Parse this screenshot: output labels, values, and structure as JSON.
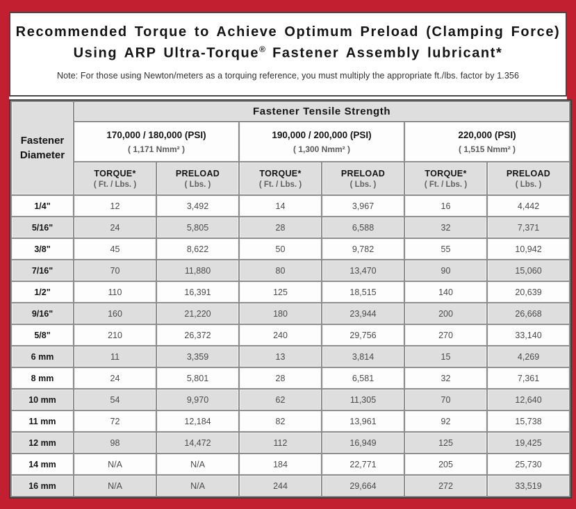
{
  "frame": {
    "border_color": "#c22030",
    "grid_color": "#8c8c8c",
    "row_alt_color": "#dedede"
  },
  "title": {
    "line1": "Recommended Torque to Achieve Optimum Preload (Clamping Force)",
    "line2_pre": "Using ARP Ultra-Torque",
    "line2_reg": "®",
    "line2_post": " Fastener Assembly lubricant*",
    "note": "Note: For those using Newton/meters as a torquing reference, you must multiply the appropriate ft./lbs. factor by 1.356"
  },
  "table": {
    "corner_line1": "Fastener",
    "corner_line2": "Diameter",
    "tensile_header": "Fastener Tensile Strength",
    "strength_groups": [
      {
        "psi": "170,000 / 180,000 (PSI)",
        "nmm": "( 1,171 Nmm² )"
      },
      {
        "psi": "190,000 / 200,000 (PSI)",
        "nmm": "( 1,300 Nmm² )"
      },
      {
        "psi": "220,000 (PSI)",
        "nmm": "( 1,515 Nmm² )"
      }
    ],
    "sub_headers": {
      "torque_label": "TORQUE*",
      "torque_unit": "( Ft. / Lbs. )",
      "preload_label": "PRELOAD",
      "preload_unit": "( Lbs. )"
    },
    "rows": [
      {
        "diameter": "1/4\"",
        "values": [
          "12",
          "3,492",
          "14",
          "3,967",
          "16",
          "4,442"
        ]
      },
      {
        "diameter": "5/16\"",
        "values": [
          "24",
          "5,805",
          "28",
          "6,588",
          "32",
          "7,371"
        ]
      },
      {
        "diameter": "3/8\"",
        "values": [
          "45",
          "8,622",
          "50",
          "9,782",
          "55",
          "10,942"
        ]
      },
      {
        "diameter": "7/16\"",
        "values": [
          "70",
          "11,880",
          "80",
          "13,470",
          "90",
          "15,060"
        ]
      },
      {
        "diameter": "1/2\"",
        "values": [
          "110",
          "16,391",
          "125",
          "18,515",
          "140",
          "20,639"
        ]
      },
      {
        "diameter": "9/16\"",
        "values": [
          "160",
          "21,220",
          "180",
          "23,944",
          "200",
          "26,668"
        ]
      },
      {
        "diameter": "5/8\"",
        "values": [
          "210",
          "26,372",
          "240",
          "29,756",
          "270",
          "33,140"
        ]
      },
      {
        "diameter": "6 mm",
        "values": [
          "11",
          "3,359",
          "13",
          "3,814",
          "15",
          "4,269"
        ]
      },
      {
        "diameter": "8 mm",
        "values": [
          "24",
          "5,801",
          "28",
          "6,581",
          "32",
          "7,361"
        ]
      },
      {
        "diameter": "10 mm",
        "values": [
          "54",
          "9,970",
          "62",
          "11,305",
          "70",
          "12,640"
        ]
      },
      {
        "diameter": "11 mm",
        "values": [
          "72",
          "12,184",
          "82",
          "13,961",
          "92",
          "15,738"
        ]
      },
      {
        "diameter": "12 mm",
        "values": [
          "98",
          "14,472",
          "112",
          "16,949",
          "125",
          "19,425"
        ]
      },
      {
        "diameter": "14 mm",
        "values": [
          "N/A",
          "N/A",
          "184",
          "22,771",
          "205",
          "25,730"
        ]
      },
      {
        "diameter": "16 mm",
        "values": [
          "N/A",
          "N/A",
          "244",
          "29,664",
          "272",
          "33,519"
        ]
      }
    ]
  }
}
